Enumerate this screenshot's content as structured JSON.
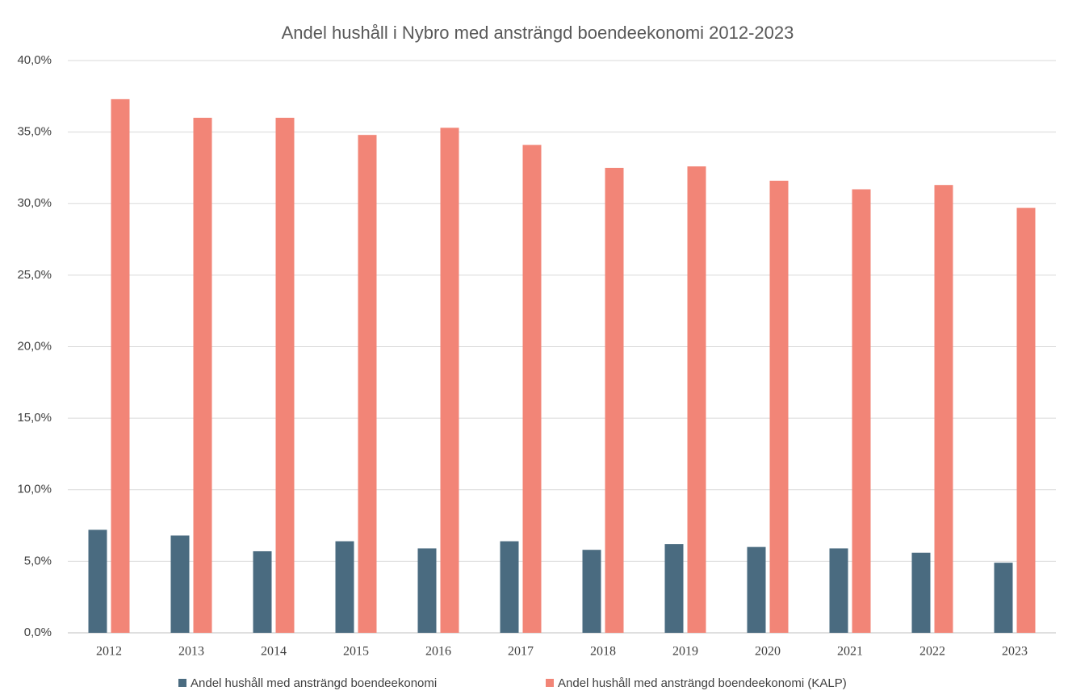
{
  "chart_data": {
    "type": "bar",
    "title": "Andel hushåll i Nybro med ansträngd boendeekonomi 2012-2023",
    "categories": [
      "2012",
      "2013",
      "2014",
      "2015",
      "2016",
      "2017",
      "2018",
      "2019",
      "2020",
      "2021",
      "2022",
      "2023"
    ],
    "series": [
      {
        "name": "Andel hushåll med ansträngd boendeekonomi",
        "color": "#4a6b80",
        "values": [
          7.2,
          6.8,
          5.7,
          6.4,
          5.9,
          6.4,
          5.8,
          6.2,
          6.0,
          5.9,
          5.6,
          4.9
        ]
      },
      {
        "name": "Andel hushåll med ansträngd boendeekonomi (KALP)",
        "color": "#f28577",
        "values": [
          37.3,
          36.0,
          36.0,
          34.8,
          35.3,
          34.1,
          32.5,
          32.6,
          31.6,
          31.0,
          31.3,
          29.7
        ]
      }
    ],
    "ylim": [
      0,
      40
    ],
    "yticks": [
      {
        "value": 0,
        "label": "0,0%"
      },
      {
        "value": 5,
        "label": "5,0%"
      },
      {
        "value": 10,
        "label": "10,0%"
      },
      {
        "value": 15,
        "label": "15,0%"
      },
      {
        "value": 20,
        "label": "20,0%"
      },
      {
        "value": 25,
        "label": "25,0%"
      },
      {
        "value": 30,
        "label": "30,0%"
      },
      {
        "value": 35,
        "label": "35,0%"
      },
      {
        "value": 40,
        "label": "40,0%"
      }
    ],
    "grid": true,
    "legend": "bottom"
  }
}
